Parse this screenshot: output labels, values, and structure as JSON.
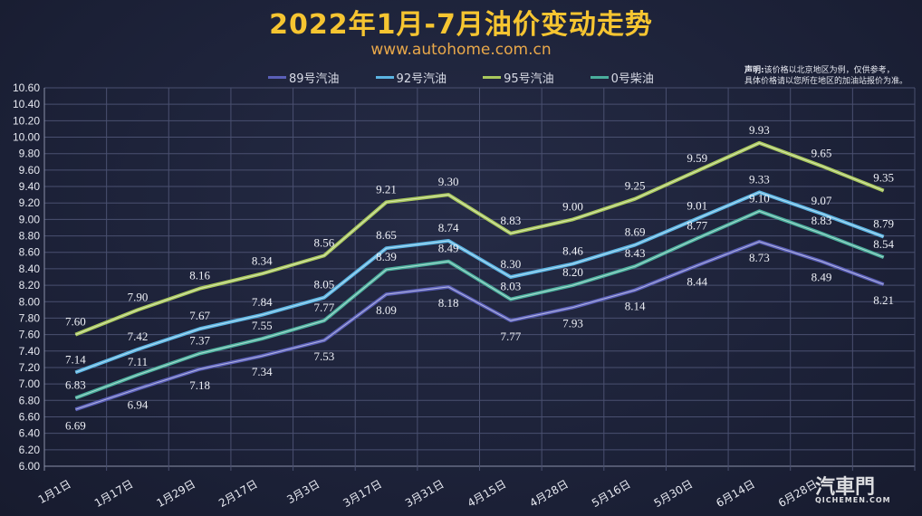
{
  "chart_data": {
    "type": "line",
    "title": "2022年1月-7月油价变动走势",
    "subtitle": "www.autohome.com.cn",
    "note_label": "声明:",
    "note_line1": "该价格以北京地区为例，仅供参考，",
    "note_line2": "具体价格请以您所在地区的加油站报价为准。",
    "categories": [
      "1月1日",
      "1月17日",
      "1月29日",
      "2月17日",
      "3月3日",
      "3月17日",
      "3月31日",
      "4月15日",
      "4月28日",
      "5月16日",
      "5月30日",
      "6月14日",
      "6月28日",
      ""
    ],
    "ylim": [
      6.0,
      10.6
    ],
    "ytick_step": 0.2,
    "grid": true,
    "legend_position": "top",
    "series": [
      {
        "name": "89号汽油",
        "color": "#5a5fb8",
        "values": [
          6.69,
          6.94,
          7.18,
          7.34,
          7.53,
          8.09,
          8.18,
          7.77,
          7.93,
          8.14,
          8.44,
          8.73,
          8.49,
          8.21
        ]
      },
      {
        "name": "92号汽油",
        "color": "#5bb4e2",
        "values": [
          7.14,
          7.42,
          7.67,
          7.84,
          8.05,
          8.65,
          8.74,
          8.3,
          8.46,
          8.69,
          9.01,
          9.33,
          9.07,
          8.79
        ]
      },
      {
        "name": "95号汽油",
        "color": "#a9c85c",
        "values": [
          7.6,
          7.9,
          8.16,
          8.34,
          8.56,
          9.21,
          9.3,
          8.83,
          9.0,
          9.25,
          9.59,
          9.93,
          9.65,
          9.35
        ]
      },
      {
        "name": "0号柴油",
        "color": "#4aae9c",
        "values": [
          6.83,
          7.11,
          7.37,
          7.55,
          7.77,
          8.39,
          8.49,
          8.03,
          8.2,
          8.43,
          8.77,
          9.1,
          8.83,
          8.54
        ]
      }
    ]
  },
  "watermark": {
    "text": "汽車門",
    "sub": "QICHEMEN.COM"
  }
}
